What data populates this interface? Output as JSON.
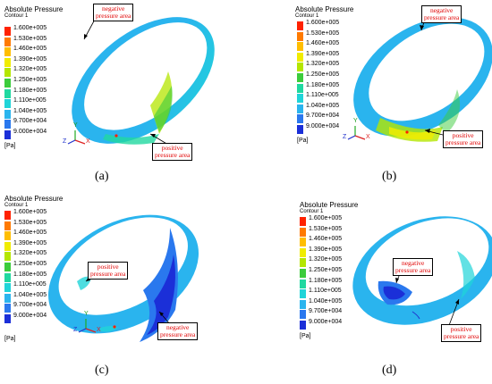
{
  "legend": {
    "title": "Absolute Pressure",
    "subtitle": "Contour 1",
    "unit": "[Pa]",
    "ticks": [
      "1.600e+005",
      "1.530e+005",
      "1.460e+005",
      "1.390e+005",
      "1.320e+005",
      "1.250e+005",
      "1.180e+005",
      "1.110e+005",
      "1.040e+005",
      "9.700e+004",
      "9.000e+004"
    ],
    "colors": [
      "#ff2200",
      "#ff7a00",
      "#ffbe00",
      "#f0ec00",
      "#b4e600",
      "#3ccc3c",
      "#20d8a0",
      "#20d4d8",
      "#2ab4ee",
      "#2a78ee",
      "#1b2fd8"
    ]
  },
  "axes": {
    "x": "X",
    "y": "Y",
    "z": "Z"
  },
  "panels": [
    {
      "caption": "(a)",
      "callouts": [
        "negative\npressure area",
        "positive\npressure area"
      ]
    },
    {
      "caption": "(b)",
      "callouts": [
        "negative\npressure area",
        "positive\npressure area"
      ]
    },
    {
      "caption": "(c)",
      "callouts": [
        "positive\npressure area",
        "negative\npressure area"
      ]
    },
    {
      "caption": "(d)",
      "callouts": [
        "negative\npressure area",
        "positive\npressure area"
      ]
    }
  ]
}
